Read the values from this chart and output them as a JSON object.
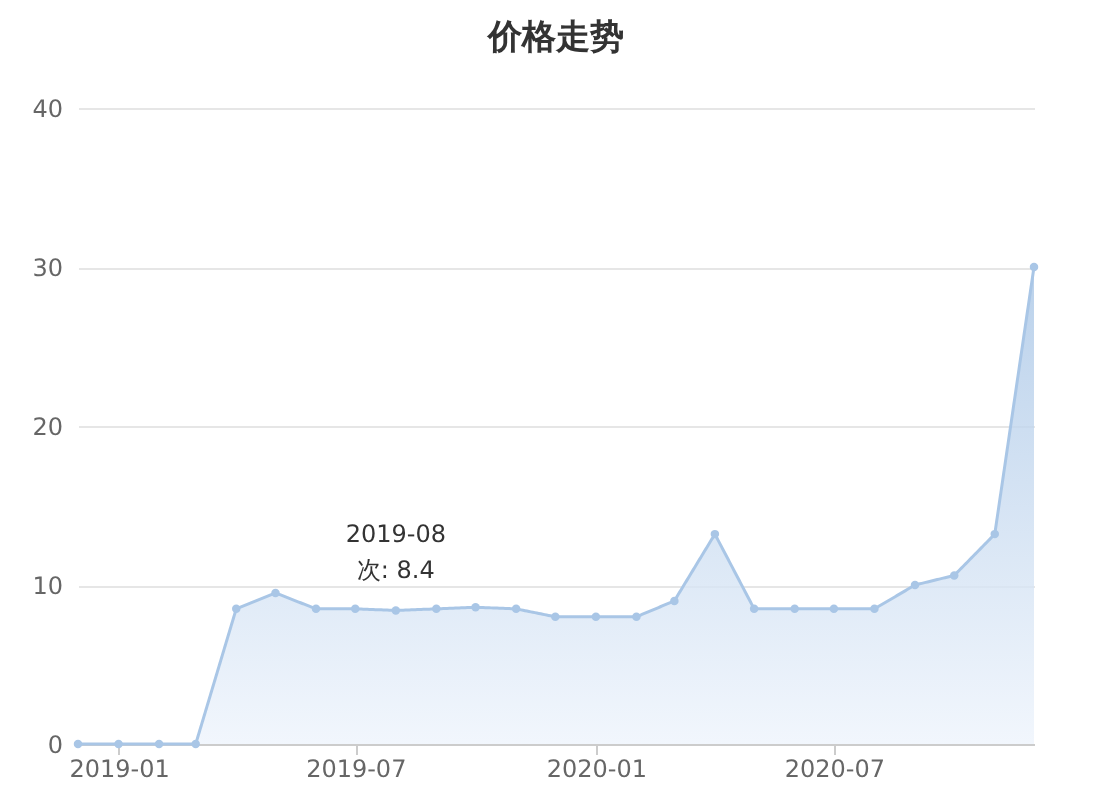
{
  "chart_data": {
    "type": "area",
    "title": "价格走势",
    "x": [
      "2018-12",
      "2019-01",
      "2019-02",
      "2019-03",
      "2019-04",
      "2019-05",
      "2019-06",
      "2019-07",
      "2019-08",
      "2019-09",
      "2019-10",
      "2019-11",
      "2019-12",
      "2020-01",
      "2020-02",
      "2020-03",
      "2020-04",
      "2020-05",
      "2020-06",
      "2020-07",
      "2020-08",
      "2020-09",
      "2020-10",
      "2020-11",
      "2020-12"
    ],
    "series": [
      {
        "color": "#a9c6e6",
        "values": [
          0,
          0,
          0,
          0,
          8.5,
          9.5,
          8.5,
          8.5,
          8.4,
          8.5,
          8.6,
          8.5,
          8.0,
          8.0,
          8.0,
          9.0,
          13.2,
          8.5,
          8.5,
          8.5,
          8.5,
          10.0,
          10.6,
          13.2,
          30
        ]
      }
    ],
    "xlim": [
      "2018-12",
      "2020-12"
    ],
    "xticks": [
      "2019-01",
      "2019-07",
      "2020-01",
      "2020-07"
    ],
    "ylim": [
      0,
      40
    ],
    "yticks": [
      0,
      10,
      20,
      30,
      40
    ],
    "grid": "y",
    "marker": "circle",
    "annotations": [
      {
        "text": "2019-08\n次: 8.4",
        "x": "2019-08",
        "y": 8.4
      }
    ]
  }
}
